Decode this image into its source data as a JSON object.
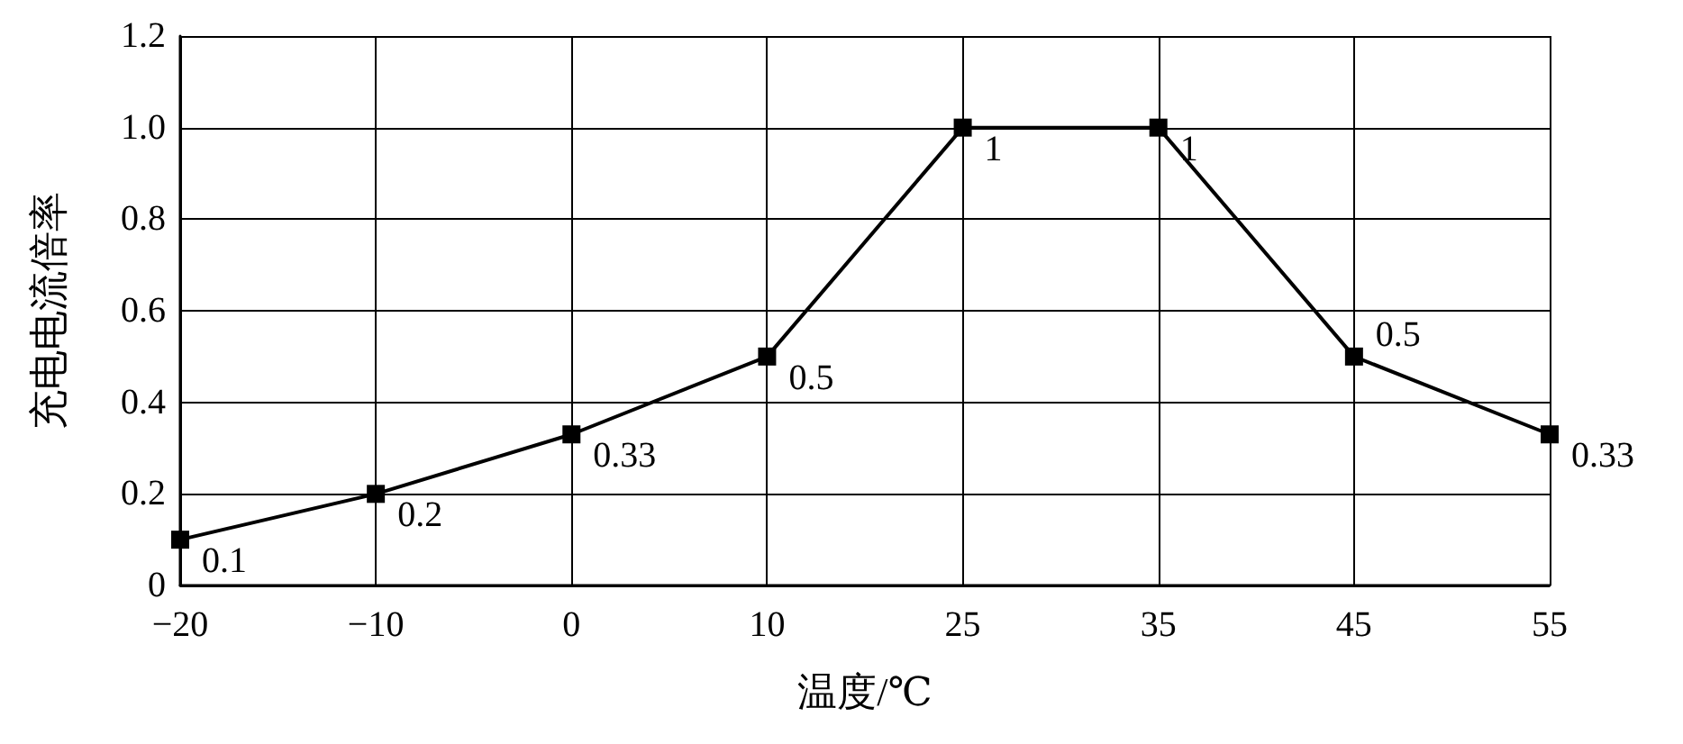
{
  "chart_data": {
    "type": "line",
    "xlabel": "温度/℃",
    "ylabel": "充电电流倍率",
    "categories": [
      "−20",
      "−10",
      "0",
      "10",
      "25",
      "35",
      "45",
      "55"
    ],
    "values": [
      0.1,
      0.2,
      0.33,
      0.5,
      1,
      1,
      0.5,
      0.33
    ],
    "color": "#000000",
    "marker": "square",
    "line_style": "solid",
    "data_labels": true,
    "ylim": [
      0,
      1.2
    ],
    "yticks": [
      0,
      0.2,
      0.4,
      0.6,
      0.8,
      {
        "value": 1,
        "label": "1.0"
      },
      1.2
    ],
    "grid": true
  }
}
